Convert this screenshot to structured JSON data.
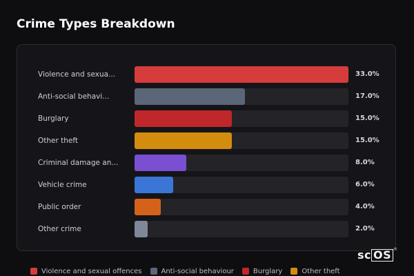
{
  "header": {
    "title": "Crime Types Breakdown"
  },
  "chart_data": {
    "type": "bar",
    "orientation": "horizontal",
    "categories": [
      "Violence and sexua...",
      "Anti-social behavi...",
      "Burglary",
      "Other theft",
      "Criminal damage an...",
      "Vehicle crime",
      "Public order",
      "Other crime"
    ],
    "values": [
      33.0,
      17.0,
      15.0,
      15.0,
      8.0,
      6.0,
      4.0,
      2.0
    ],
    "value_labels": [
      "33.0%",
      "17.0%",
      "15.0%",
      "15.0%",
      "8.0%",
      "6.0%",
      "4.0%",
      "2.0%"
    ],
    "colors": [
      "#d63c3c",
      "#5b6778",
      "#c0272b",
      "#d48c0f",
      "#7b4fd1",
      "#3b76d6",
      "#d4621a",
      "#7f8898"
    ],
    "xlim": [
      0,
      33
    ],
    "unit": "%",
    "grid": false,
    "legend_position": "bottom",
    "legend": [
      {
        "label": "Violence and sexual offences",
        "color": "#d63c3c"
      },
      {
        "label": "Anti-social behaviour",
        "color": "#5b6778"
      },
      {
        "label": "Burglary",
        "color": "#c0272b"
      },
      {
        "label": "Other theft",
        "color": "#d48c0f"
      }
    ]
  },
  "brand": {
    "text": "scOS",
    "reg": "®"
  }
}
